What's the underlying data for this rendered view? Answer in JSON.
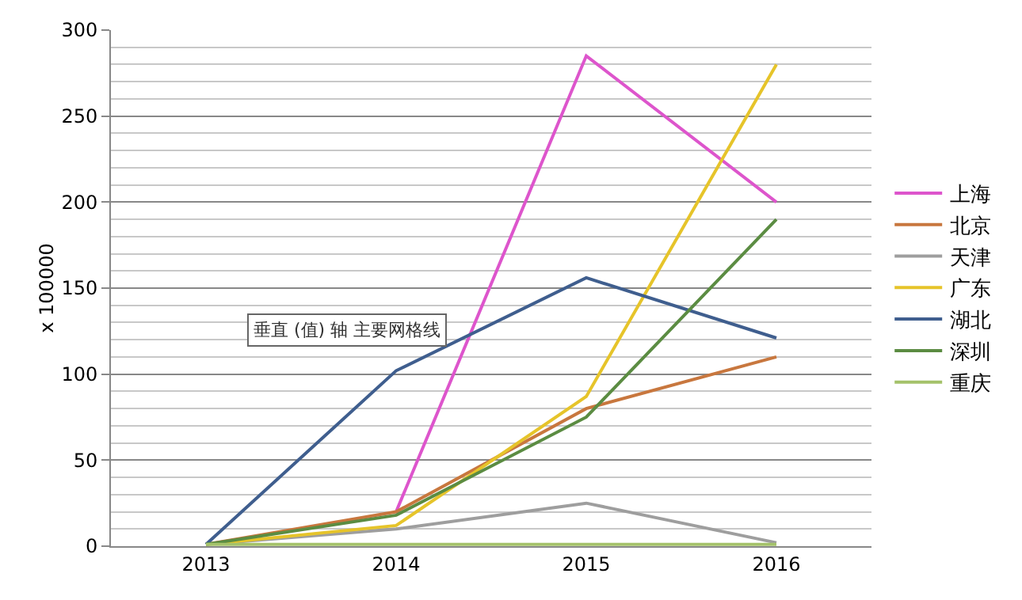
{
  "chart_data": {
    "type": "line",
    "ylabel": "x 100000",
    "categories": [
      "2013",
      "2014",
      "2015",
      "2016"
    ],
    "series": [
      {
        "name": "上海",
        "color": "#dd55cc",
        "values": [
          null,
          20,
          285,
          200
        ]
      },
      {
        "name": "北京",
        "color": "#c8773e",
        "values": [
          1,
          20,
          80,
          110
        ]
      },
      {
        "name": "天津",
        "color": "#9e9e9e",
        "values": [
          1,
          10,
          25,
          2
        ]
      },
      {
        "name": "广东",
        "color": "#e6c42a",
        "values": [
          1,
          12,
          87,
          280
        ]
      },
      {
        "name": "湖北",
        "color": "#3f5e8e",
        "values": [
          1,
          102,
          156,
          121
        ]
      },
      {
        "name": "深圳",
        "color": "#5b8c42",
        "values": [
          1,
          18,
          75,
          190
        ]
      },
      {
        "name": "重庆",
        "color": "#a4c26a",
        "values": [
          1,
          1,
          1,
          1
        ]
      }
    ],
    "ylim": [
      0,
      300
    ],
    "yticks": [
      0,
      50,
      100,
      150,
      200,
      250,
      300
    ],
    "grid": "y",
    "legend": "right",
    "marker": "none",
    "line_style": "solid",
    "annotations": [
      "垂直 (值) 轴 主要网格线"
    ]
  }
}
